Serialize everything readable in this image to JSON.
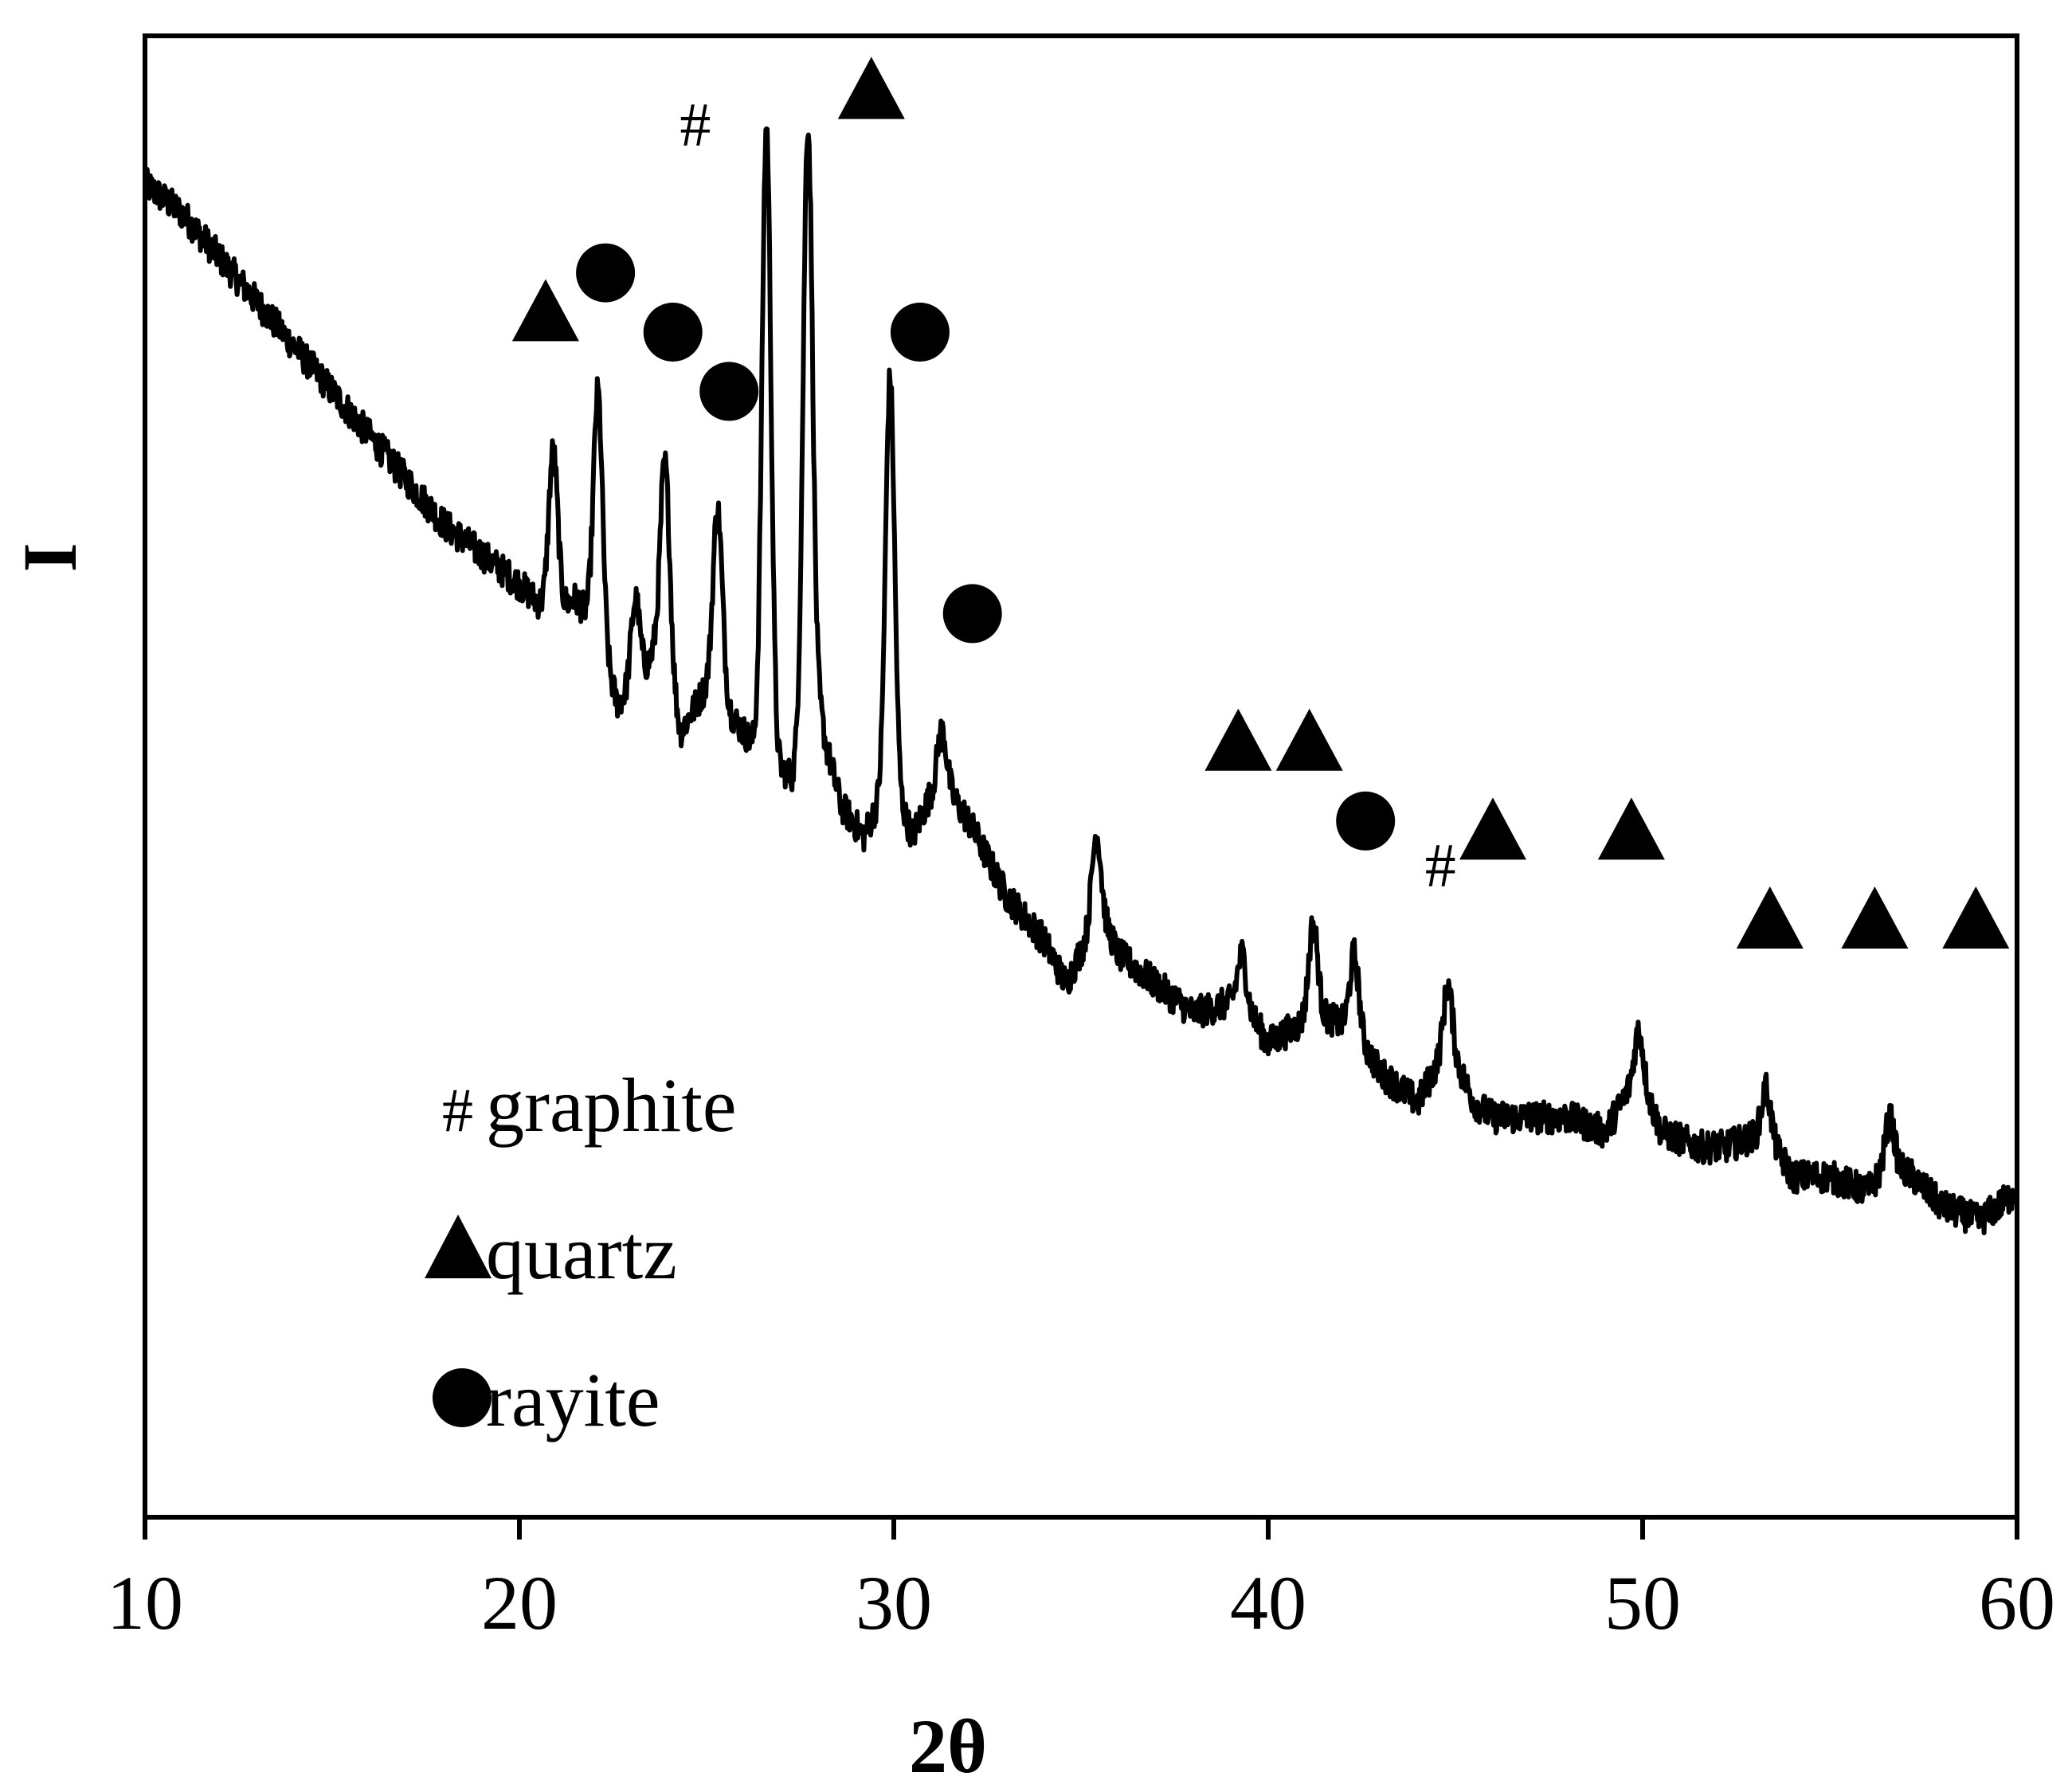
{
  "chart_data": {
    "type": "line",
    "title": "",
    "xlabel": "2θ",
    "ylabel": "I",
    "xlim": [
      10,
      60
    ],
    "ylim": [
      0,
      100
    ],
    "x_ticks": [
      "10",
      "20",
      "30",
      "40",
      "50",
      "60"
    ],
    "y_ticks_shown": false,
    "grid": false,
    "series": [
      {
        "points": [
          [
            10,
            90
          ],
          [
            11,
            88
          ],
          [
            12,
            85
          ],
          [
            13,
            82
          ],
          [
            14,
            79
          ],
          [
            15,
            76
          ],
          [
            16,
            73
          ],
          [
            17,
            70
          ],
          [
            18,
            67
          ],
          [
            19,
            65
          ],
          [
            20,
            63
          ],
          [
            20.8,
            61
          ],
          [
            21.5,
            62
          ],
          [
            22.1,
            60
          ],
          [
            22.6,
            55
          ],
          [
            23.2,
            56
          ],
          [
            23.8,
            60
          ],
          [
            24.3,
            53
          ],
          [
            25.2,
            57
          ],
          [
            25.7,
            54
          ],
          [
            26.3,
            52
          ],
          [
            26.7,
            51
          ],
          [
            27.3,
            50
          ],
          [
            27.8,
            58
          ],
          [
            28.2,
            52
          ],
          [
            28.6,
            48
          ],
          [
            29.2,
            46
          ],
          [
            29.9,
            50
          ],
          [
            30.5,
            46
          ],
          [
            31.2,
            50
          ],
          [
            32.0,
            47
          ],
          [
            33.0,
            42
          ],
          [
            34.0,
            39
          ],
          [
            34.6,
            36
          ],
          [
            35.5,
            41
          ],
          [
            36.0,
            38
          ],
          [
            37.0,
            36
          ],
          [
            38.0,
            34
          ],
          [
            39.3,
            35
          ],
          [
            40.0,
            32
          ],
          [
            41.3,
            34
          ],
          [
            42.3,
            33
          ],
          [
            43.0,
            30
          ],
          [
            44.0,
            28
          ],
          [
            44.8,
            32
          ],
          [
            45.5,
            28
          ],
          [
            46.0,
            27
          ],
          [
            47.0,
            27
          ],
          [
            48.0,
            27
          ],
          [
            49.0,
            26
          ],
          [
            49.9,
            30
          ],
          [
            50.5,
            26
          ],
          [
            51.5,
            25
          ],
          [
            52.2,
            25
          ],
          [
            53.3,
            26
          ],
          [
            54.0,
            23
          ],
          [
            55.0,
            23
          ],
          [
            56.0,
            22
          ],
          [
            56.6,
            24
          ],
          [
            57.2,
            23
          ],
          [
            58.0,
            21
          ],
          [
            59.0,
            20
          ],
          [
            60,
            22
          ]
        ],
        "peaks": [
          [
            20.9,
            72
          ],
          [
            22.1,
            76
          ],
          [
            23.1,
            62
          ],
          [
            23.9,
            71
          ],
          [
            25.3,
            68
          ],
          [
            26.6,
            94
          ],
          [
            27.7,
            94
          ],
          [
            29.9,
            77
          ],
          [
            31.3,
            53
          ],
          [
            35.4,
            46
          ],
          [
            39.3,
            38
          ],
          [
            41.2,
            40
          ],
          [
            42.3,
            38
          ],
          [
            44.8,
            36
          ],
          [
            49.9,
            33
          ],
          [
            53.3,
            29
          ],
          [
            56.6,
            27
          ]
        ]
      }
    ],
    "annotations": [
      {
        "symbol": "#",
        "x": 24.7,
        "y": 94
      },
      {
        "symbol": "triangle",
        "x": 20.7,
        "y": 81
      },
      {
        "symbol": "circle",
        "x": 22.3,
        "y": 84
      },
      {
        "symbol": "circle",
        "x": 24.1,
        "y": 80
      },
      {
        "symbol": "circle",
        "x": 25.6,
        "y": 76
      },
      {
        "symbol": "triangle",
        "x": 29.4,
        "y": 96
      },
      {
        "symbol": "circle",
        "x": 30.7,
        "y": 80
      },
      {
        "symbol": "circle",
        "x": 32.1,
        "y": 61
      },
      {
        "symbol": "triangle",
        "x": 39.2,
        "y": 52
      },
      {
        "symbol": "triangle",
        "x": 41.1,
        "y": 52
      },
      {
        "symbol": "circle",
        "x": 42.6,
        "y": 47
      },
      {
        "symbol": "#",
        "x": 44.6,
        "y": 44
      },
      {
        "symbol": "triangle",
        "x": 46.0,
        "y": 46
      },
      {
        "symbol": "triangle",
        "x": 49.7,
        "y": 46
      },
      {
        "symbol": "triangle",
        "x": 53.4,
        "y": 40
      },
      {
        "symbol": "triangle",
        "x": 56.2,
        "y": 40
      },
      {
        "symbol": "triangle",
        "x": 58.9,
        "y": 40
      }
    ],
    "legend": {
      "placement": "bottom-left",
      "entries": [
        {
          "symbol": "#",
          "label": "graphite"
        },
        {
          "symbol": "triangle",
          "label": "quartz"
        },
        {
          "symbol": "circle",
          "label": "rayite"
        }
      ]
    }
  }
}
